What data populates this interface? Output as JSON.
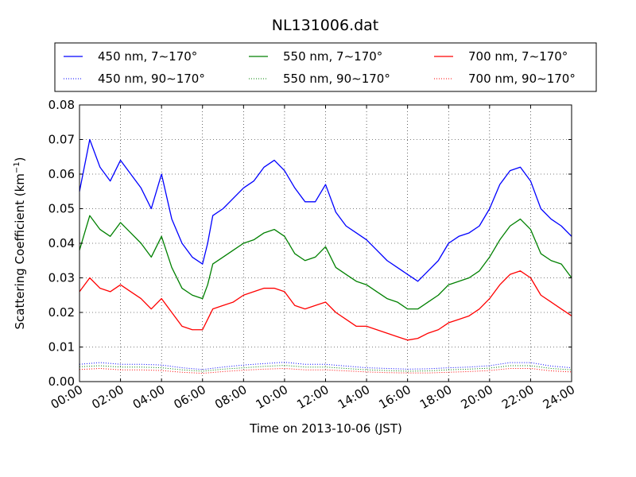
{
  "chart_data": {
    "type": "line",
    "title": "NL131006.dat",
    "xlabel": "Time on 2013-10-06 (JST)",
    "ylabel": "Scattering Coefficient (km",
    "ylabel_sup": "−1",
    "ylabel_close": ")",
    "xlim": [
      0,
      24
    ],
    "ylim": [
      0,
      0.08
    ],
    "x_unit": "hours",
    "xticks": [
      0,
      2,
      4,
      6,
      8,
      10,
      12,
      14,
      16,
      18,
      20,
      22,
      24
    ],
    "xtick_labels": [
      "00:00",
      "02:00",
      "04:00",
      "06:00",
      "08:00",
      "10:00",
      "12:00",
      "14:00",
      "16:00",
      "18:00",
      "20:00",
      "22:00",
      "24:00"
    ],
    "yticks": [
      0,
      0.01,
      0.02,
      0.03,
      0.04,
      0.05,
      0.06,
      0.07,
      0.08
    ],
    "ytick_labels": [
      "0.00",
      "0.01",
      "0.02",
      "0.03",
      "0.04",
      "0.05",
      "0.06",
      "0.07",
      "0.08"
    ],
    "grid": true,
    "legend_position": "top",
    "series": [
      {
        "name": "450 nm, 7∼170°",
        "color": "#0000ff",
        "style": "solid",
        "x": [
          0,
          0.5,
          1,
          1.5,
          2,
          2.5,
          3,
          3.5,
          4,
          4.5,
          5,
          5.5,
          6,
          6.25,
          6.5,
          7,
          7.5,
          8,
          8.5,
          9,
          9.5,
          10,
          10.5,
          11,
          11.5,
          12,
          12.5,
          13,
          13.5,
          14,
          14.5,
          15,
          15.5,
          16,
          16.5,
          17,
          17.5,
          18,
          18.5,
          19,
          19.5,
          20,
          20.5,
          21,
          21.5,
          22,
          22.5,
          23,
          23.5,
          24
        ],
        "y": [
          0.055,
          0.07,
          0.062,
          0.058,
          0.064,
          0.06,
          0.056,
          0.05,
          0.06,
          0.047,
          0.04,
          0.036,
          0.034,
          0.04,
          0.048,
          0.05,
          0.053,
          0.056,
          0.058,
          0.062,
          0.064,
          0.061,
          0.056,
          0.052,
          0.052,
          0.057,
          0.049,
          0.045,
          0.043,
          0.041,
          0.038,
          0.035,
          0.033,
          0.031,
          0.029,
          0.032,
          0.035,
          0.04,
          0.042,
          0.043,
          0.045,
          0.05,
          0.057,
          0.061,
          0.062,
          0.058,
          0.05,
          0.047,
          0.045,
          0.042
        ]
      },
      {
        "name": "550 nm, 7∼170°",
        "color": "#008000",
        "style": "solid",
        "x": [
          0,
          0.5,
          1,
          1.5,
          2,
          2.5,
          3,
          3.5,
          4,
          4.5,
          5,
          5.5,
          6,
          6.25,
          6.5,
          7,
          7.5,
          8,
          8.5,
          9,
          9.5,
          10,
          10.5,
          11,
          11.5,
          12,
          12.5,
          13,
          13.5,
          14,
          14.5,
          15,
          15.5,
          16,
          16.5,
          17,
          17.5,
          18,
          18.5,
          19,
          19.5,
          20,
          20.5,
          21,
          21.5,
          22,
          22.5,
          23,
          23.5,
          24
        ],
        "y": [
          0.038,
          0.048,
          0.044,
          0.042,
          0.046,
          0.043,
          0.04,
          0.036,
          0.042,
          0.033,
          0.027,
          0.025,
          0.024,
          0.028,
          0.034,
          0.036,
          0.038,
          0.04,
          0.041,
          0.043,
          0.044,
          0.042,
          0.037,
          0.035,
          0.036,
          0.039,
          0.033,
          0.031,
          0.029,
          0.028,
          0.026,
          0.024,
          0.023,
          0.021,
          0.021,
          0.023,
          0.025,
          0.028,
          0.029,
          0.03,
          0.032,
          0.036,
          0.041,
          0.045,
          0.047,
          0.044,
          0.037,
          0.035,
          0.034,
          0.03
        ]
      },
      {
        "name": "700 nm, 7∼170°",
        "color": "#ff0000",
        "style": "solid",
        "x": [
          0,
          0.5,
          1,
          1.5,
          2,
          2.5,
          3,
          3.5,
          4,
          4.5,
          5,
          5.5,
          6,
          6.25,
          6.5,
          7,
          7.5,
          8,
          8.5,
          9,
          9.5,
          10,
          10.5,
          11,
          11.5,
          12,
          12.5,
          13,
          13.5,
          14,
          14.5,
          15,
          15.5,
          16,
          16.5,
          17,
          17.5,
          18,
          18.5,
          19,
          19.5,
          20,
          20.5,
          21,
          21.5,
          22,
          22.5,
          23,
          23.5,
          24
        ],
        "y": [
          0.026,
          0.03,
          0.027,
          0.026,
          0.028,
          0.026,
          0.024,
          0.021,
          0.024,
          0.02,
          0.016,
          0.015,
          0.015,
          0.018,
          0.021,
          0.022,
          0.023,
          0.025,
          0.026,
          0.027,
          0.027,
          0.026,
          0.022,
          0.021,
          0.022,
          0.023,
          0.02,
          0.018,
          0.016,
          0.016,
          0.015,
          0.014,
          0.013,
          0.012,
          0.0125,
          0.014,
          0.015,
          0.017,
          0.018,
          0.019,
          0.021,
          0.024,
          0.028,
          0.031,
          0.032,
          0.03,
          0.025,
          0.023,
          0.021,
          0.019
        ]
      },
      {
        "name": "450 nm, 90∼170°",
        "color": "#0000ff",
        "style": "dotted",
        "x": [
          0,
          1,
          2,
          3,
          4,
          5,
          6,
          7,
          8,
          9,
          10,
          11,
          12,
          13,
          14,
          15,
          16,
          17,
          18,
          19,
          20,
          21,
          22,
          23,
          24
        ],
        "y": [
          0.005,
          0.0055,
          0.005,
          0.005,
          0.0048,
          0.004,
          0.0035,
          0.0042,
          0.0048,
          0.0052,
          0.0056,
          0.005,
          0.005,
          0.0045,
          0.004,
          0.0038,
          0.0036,
          0.0037,
          0.004,
          0.0042,
          0.0046,
          0.0055,
          0.0055,
          0.0045,
          0.004
        ]
      },
      {
        "name": "550 nm, 90∼170°",
        "color": "#008000",
        "style": "dotted",
        "x": [
          0,
          1,
          2,
          3,
          4,
          5,
          6,
          7,
          8,
          9,
          10,
          11,
          12,
          13,
          14,
          15,
          16,
          17,
          18,
          19,
          20,
          21,
          22,
          23,
          24
        ],
        "y": [
          0.0043,
          0.0046,
          0.0042,
          0.0042,
          0.004,
          0.0034,
          0.003,
          0.0036,
          0.004,
          0.0044,
          0.0047,
          0.0042,
          0.0042,
          0.0038,
          0.0034,
          0.0032,
          0.003,
          0.0031,
          0.0034,
          0.0036,
          0.0039,
          0.0046,
          0.0046,
          0.0038,
          0.0034
        ]
      },
      {
        "name": "700 nm, 90∼170°",
        "color": "#ff0000",
        "style": "dotted",
        "x": [
          0,
          1,
          2,
          3,
          4,
          5,
          6,
          7,
          8,
          9,
          10,
          11,
          12,
          13,
          14,
          15,
          16,
          17,
          18,
          19,
          20,
          21,
          22,
          23,
          24
        ],
        "y": [
          0.0035,
          0.0038,
          0.0034,
          0.0034,
          0.0032,
          0.0027,
          0.0024,
          0.0029,
          0.0033,
          0.0036,
          0.0038,
          0.0034,
          0.0034,
          0.0031,
          0.0028,
          0.0026,
          0.0025,
          0.0025,
          0.0027,
          0.0029,
          0.0032,
          0.0038,
          0.0038,
          0.0031,
          0.0028
        ]
      }
    ]
  }
}
